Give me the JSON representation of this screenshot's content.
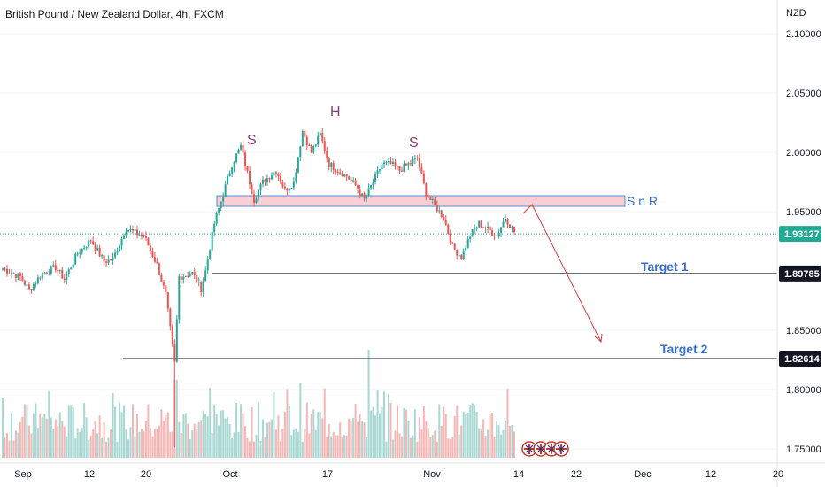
{
  "title": "British Pound / New Zealand Dollar, 4h, FXCM",
  "currency": "NZD",
  "colors": {
    "up": "#26a69a",
    "down": "#ef5350",
    "vol_up": "#a8d8d3",
    "vol_down": "#f4b7b5",
    "current_tag": "#22ab94",
    "level_tag": "#131722",
    "zone_fill": "#f9c6ce",
    "zone_stroke": "#4f8fd9",
    "annotation_blue": "#3a70c8",
    "annotation_pink": "#8a3f72",
    "arrow": "#e03a3a"
  },
  "chart_data": {
    "type": "candlestick",
    "title": "British Pound / New Zealand Dollar, 4h, FXCM",
    "y_axis": {
      "ylim": [
        1.745,
        2.125
      ],
      "ticks": [
        "2.10000",
        "2.05000",
        "2.00000",
        "1.95000",
        "1.85000",
        "1.80000",
        "1.75000"
      ]
    },
    "x_axis": {
      "ticks": [
        "Sep",
        "12",
        "20",
        "Oct",
        "17",
        "Nov",
        "14",
        "22",
        "Dec",
        "12",
        "20"
      ]
    },
    "price_tags": {
      "current": "1.93127",
      "target1_level": "1.89785",
      "target2_level": "1.82614"
    },
    "current_price": 1.93127,
    "anchors": [
      [
        0,
        1.902
      ],
      [
        8,
        1.895
      ],
      [
        12,
        1.884
      ],
      [
        18,
        1.898
      ],
      [
        24,
        1.903
      ],
      [
        28,
        1.893
      ],
      [
        34,
        1.915
      ],
      [
        40,
        1.926
      ],
      [
        46,
        1.908
      ],
      [
        50,
        1.91
      ],
      [
        56,
        1.936
      ],
      [
        60,
        1.932
      ],
      [
        64,
        1.93
      ],
      [
        70,
        1.905
      ],
      [
        74,
        1.88
      ],
      [
        78,
        1.822
      ],
      [
        80,
        1.895
      ],
      [
        86,
        1.898
      ],
      [
        90,
        1.885
      ],
      [
        92,
        1.9
      ],
      [
        96,
        1.94
      ],
      [
        100,
        1.965
      ],
      [
        104,
        1.99
      ],
      [
        108,
        2.005
      ],
      [
        112,
        1.975
      ],
      [
        114,
        1.96
      ],
      [
        118,
        1.975
      ],
      [
        124,
        1.985
      ],
      [
        128,
        1.968
      ],
      [
        132,
        1.975
      ],
      [
        136,
        2.018
      ],
      [
        140,
        2.0
      ],
      [
        144,
        2.015
      ],
      [
        148,
        1.99
      ],
      [
        152,
        1.985
      ],
      [
        156,
        1.98
      ],
      [
        160,
        1.972
      ],
      [
        164,
        1.96
      ],
      [
        168,
        1.975
      ],
      [
        172,
        1.99
      ],
      [
        176,
        1.99
      ],
      [
        180,
        1.985
      ],
      [
        184,
        1.99
      ],
      [
        188,
        1.995
      ],
      [
        192,
        1.965
      ],
      [
        196,
        1.955
      ],
      [
        200,
        1.945
      ],
      [
        204,
        1.92
      ],
      [
        208,
        1.912
      ],
      [
        212,
        1.93
      ],
      [
        216,
        1.94
      ],
      [
        220,
        1.935
      ],
      [
        224,
        1.93
      ],
      [
        228,
        1.945
      ],
      [
        232,
        1.933
      ]
    ],
    "volume_max": 1.0,
    "annotations": {
      "zone_label": "S n R",
      "target1": "Target 1",
      "target2": "Target 2",
      "left_shoulder": "S",
      "head": "H",
      "right_shoulder": "S"
    }
  }
}
